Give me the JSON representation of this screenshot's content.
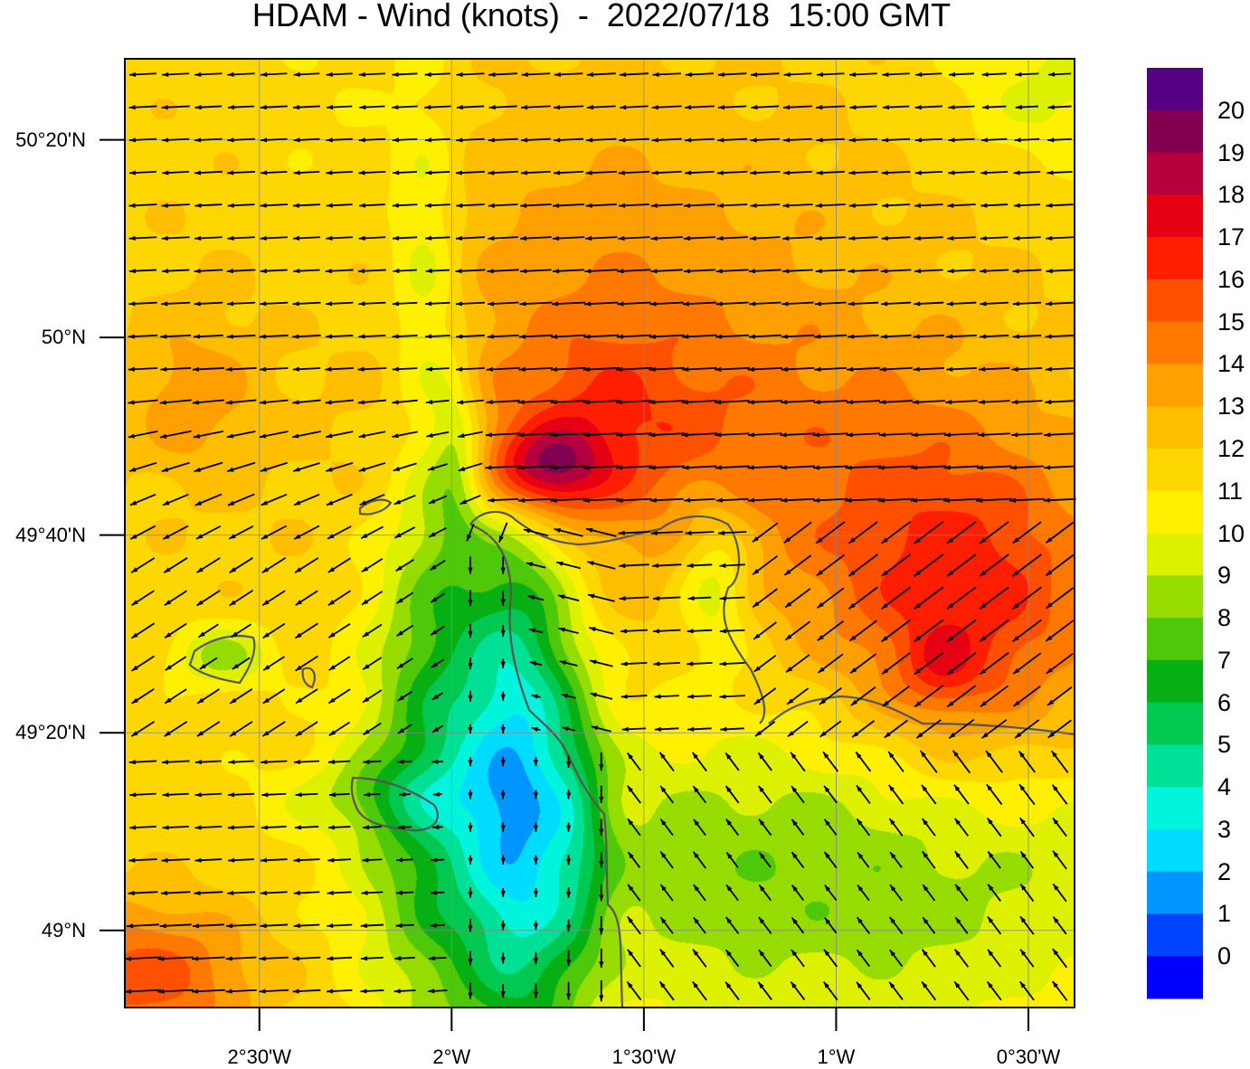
{
  "title": "HDAM - Wind (knots)  -  2022/07/18  15:00 GMT",
  "axes": {
    "longitude_ticks": [
      "2°30'W",
      "2°W",
      "1°30'W",
      "1°W",
      "0°30'W"
    ],
    "longitude_values": [
      -2.5,
      -2.0,
      -1.5,
      -1.0,
      -0.5
    ],
    "latitude_ticks": [
      "50°20'N",
      "50°N",
      "49°40'N",
      "49°20'N",
      "49°N"
    ],
    "latitude_values": [
      50.3333,
      50.0,
      49.6667,
      49.3333,
      49.0
    ],
    "extent": {
      "lon_min": -2.85,
      "lon_max": -0.38,
      "lat_min": 48.87,
      "lat_max": 50.47
    }
  },
  "colorbar": {
    "labels": [
      "20",
      "19",
      "18",
      "17",
      "16",
      "15",
      "14",
      "13",
      "12",
      "11",
      "10",
      "9",
      "8",
      "7",
      "6",
      "5",
      "4",
      "3",
      "2",
      "1",
      "0"
    ],
    "colors_top_to_bottom": [
      "#550082",
      "#820050",
      "#b4003c",
      "#e60014",
      "#ff1e00",
      "#ff5000",
      "#ff7800",
      "#ffa000",
      "#ffbe00",
      "#ffd700",
      "#fff000",
      "#dcf000",
      "#96dc00",
      "#50c80a",
      "#06b014",
      "#00c850",
      "#00e096",
      "#00f5dc",
      "#00dcff",
      "#0096ff",
      "#0044ff",
      "#0000ff"
    ]
  },
  "colors": {
    "coastline": "#555555",
    "arrows": "#000000",
    "gridlines": "#888888"
  }
}
